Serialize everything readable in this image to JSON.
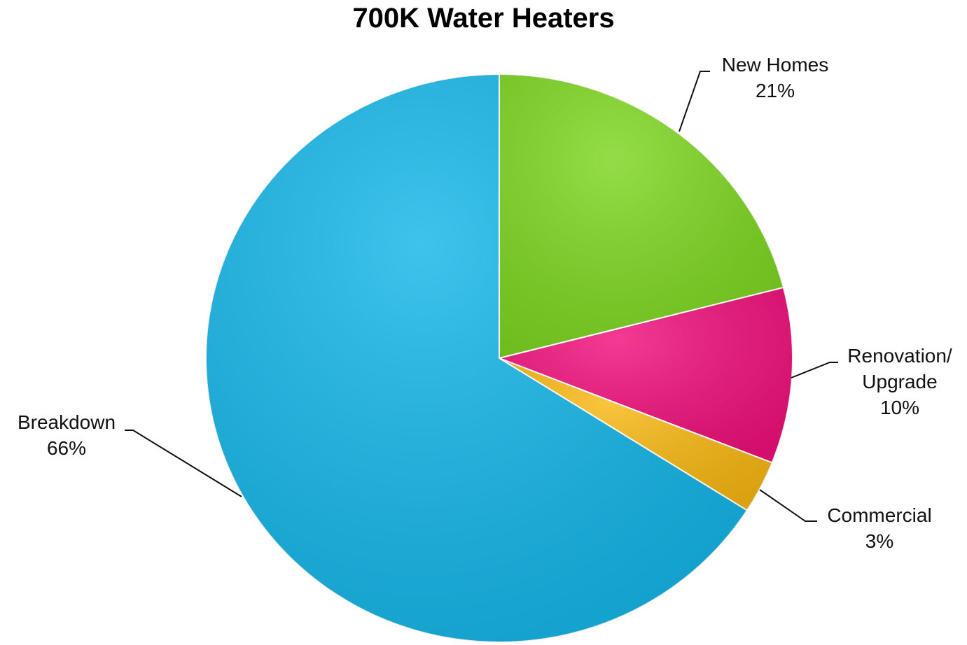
{
  "chart_data": {
    "type": "pie",
    "title": "700K Water Heaters",
    "categories": [
      "New Homes",
      "Renovation/ Upgrade",
      "Commercial",
      "Breakdown"
    ],
    "values": [
      21,
      10,
      3,
      66
    ],
    "value_labels": [
      "21%",
      "10%",
      "3%",
      "66%"
    ],
    "colors": [
      "#7dd620",
      "#f0107a",
      "#f8b812",
      "#14b6e8"
    ]
  }
}
